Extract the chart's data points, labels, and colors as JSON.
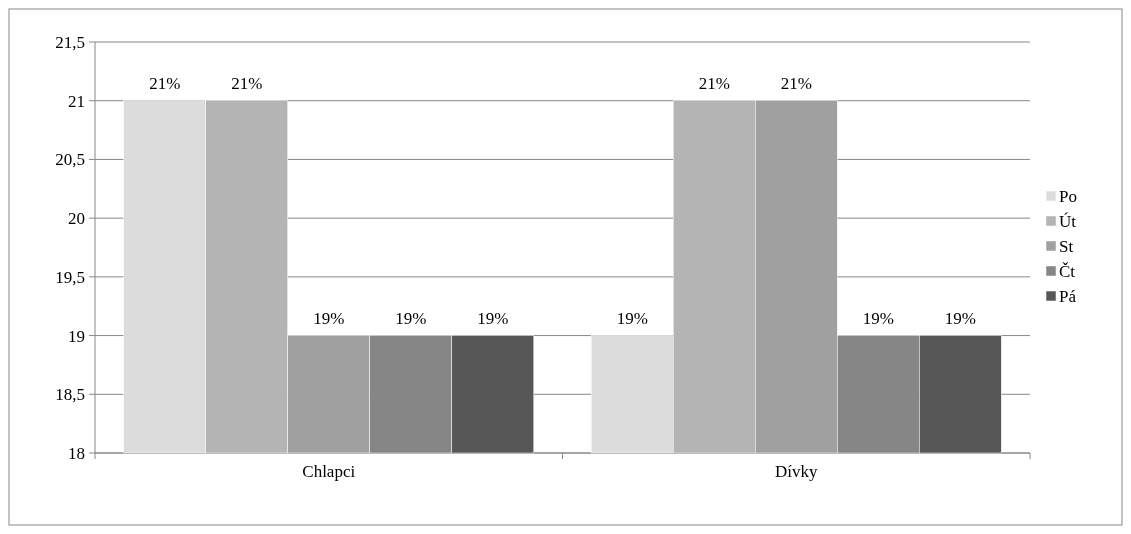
{
  "chart_data": {
    "type": "bar",
    "categories": [
      "Chlapci",
      "Dívky"
    ],
    "series": [
      {
        "name": "Po",
        "color": "#dcdcdc",
        "values": [
          21,
          19
        ],
        "value_labels": [
          "21%",
          "19%"
        ]
      },
      {
        "name": "Út",
        "color": "#b4b4b4",
        "values": [
          21,
          21
        ],
        "value_labels": [
          "21%",
          "21%"
        ]
      },
      {
        "name": "St",
        "color": "#a0a0a0",
        "values": [
          19,
          21
        ],
        "value_labels": [
          "19%",
          "21%"
        ]
      },
      {
        "name": "Čt",
        "color": "#868686",
        "values": [
          19,
          19
        ],
        "value_labels": [
          "19%",
          "19%"
        ]
      },
      {
        "name": "Pá",
        "color": "#575757",
        "values": [
          19,
          19
        ],
        "value_labels": [
          "19%",
          "19%"
        ]
      }
    ],
    "ylim": [
      18,
      21.5
    ],
    "yticks": [
      18,
      {
        "value": 18.5,
        "label": "18,5"
      },
      19,
      {
        "value": 19.5,
        "label": "19,5"
      },
      20,
      {
        "value": 20.5,
        "label": "20,5"
      },
      21,
      {
        "value": 21.5,
        "label": "21,5"
      }
    ],
    "grid": "y",
    "legend": "right"
  }
}
